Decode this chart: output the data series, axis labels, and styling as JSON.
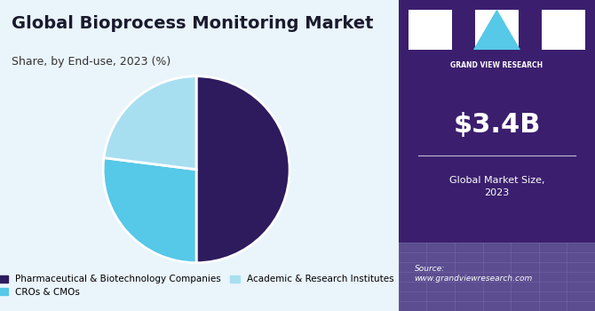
{
  "title": "Global Bioprocess Monitoring Market",
  "subtitle": "Share, by End-use, 2023 (%)",
  "pie_labels": [
    "Pharmaceutical & Biotechnology Companies",
    "CROs & CMOs",
    "Academic & Research Institutes"
  ],
  "pie_values": [
    50,
    27,
    23
  ],
  "pie_colors": [
    "#2d1b5e",
    "#56c8e8",
    "#a8dff0"
  ],
  "pie_startangle": 90,
  "legend_labels": [
    "Pharmaceutical & Biotechnology Companies",
    "CROs & CMOs",
    "Academic & Research Institutes"
  ],
  "legend_colors": [
    "#2d1b5e",
    "#56c8e8",
    "#a8dff0"
  ],
  "market_size": "$3.4B",
  "market_size_label": "Global Market Size,\n2023",
  "sidebar_bg": "#3b1f6e",
  "sidebar_bottom_bg": "#5a4a8a",
  "chart_bg": "#eaf4fb",
  "source_text": "Source:\nwww.grandviewresearch.com",
  "title_color": "#1a1a2e",
  "subtitle_color": "#333333"
}
